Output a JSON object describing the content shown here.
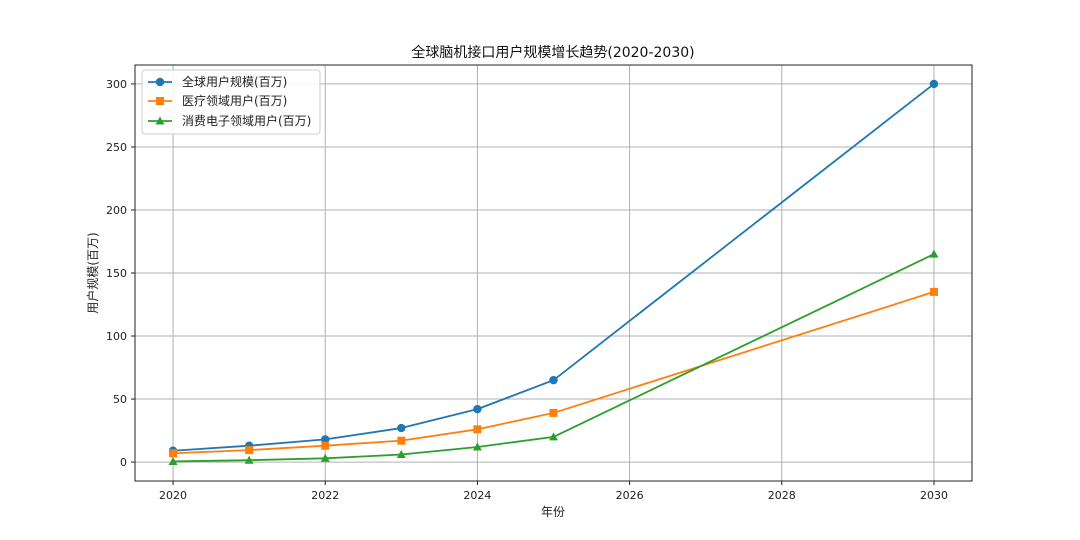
{
  "chart_data": {
    "type": "line",
    "title": "全球脑机接口用户规模增长趋势(2020-2030)",
    "xlabel": "年份",
    "ylabel": "用户规模(百万)",
    "x": [
      2020,
      2021,
      2022,
      2023,
      2024,
      2025,
      2030
    ],
    "xlim": [
      2019.5,
      2030.5
    ],
    "ylim": [
      -15,
      315
    ],
    "xticks": [
      2020,
      2022,
      2024,
      2026,
      2028,
      2030
    ],
    "yticks": [
      0,
      50,
      100,
      150,
      200,
      250,
      300
    ],
    "grid": true,
    "legend_position": "top-left",
    "series": [
      {
        "name": "全球用户规模(百万)",
        "color": "#1f77b4",
        "marker": "circle",
        "values": [
          9,
          13,
          18,
          27,
          42,
          65,
          300
        ]
      },
      {
        "name": "医疗领域用户(百万)",
        "color": "#ff7f0e",
        "marker": "square",
        "values": [
          7,
          9.5,
          13,
          17,
          26,
          39,
          135
        ]
      },
      {
        "name": "消费电子领域用户(百万)",
        "color": "#2ca02c",
        "marker": "triangle",
        "values": [
          0.5,
          1.5,
          3,
          6,
          12,
          20,
          165
        ]
      }
    ]
  }
}
